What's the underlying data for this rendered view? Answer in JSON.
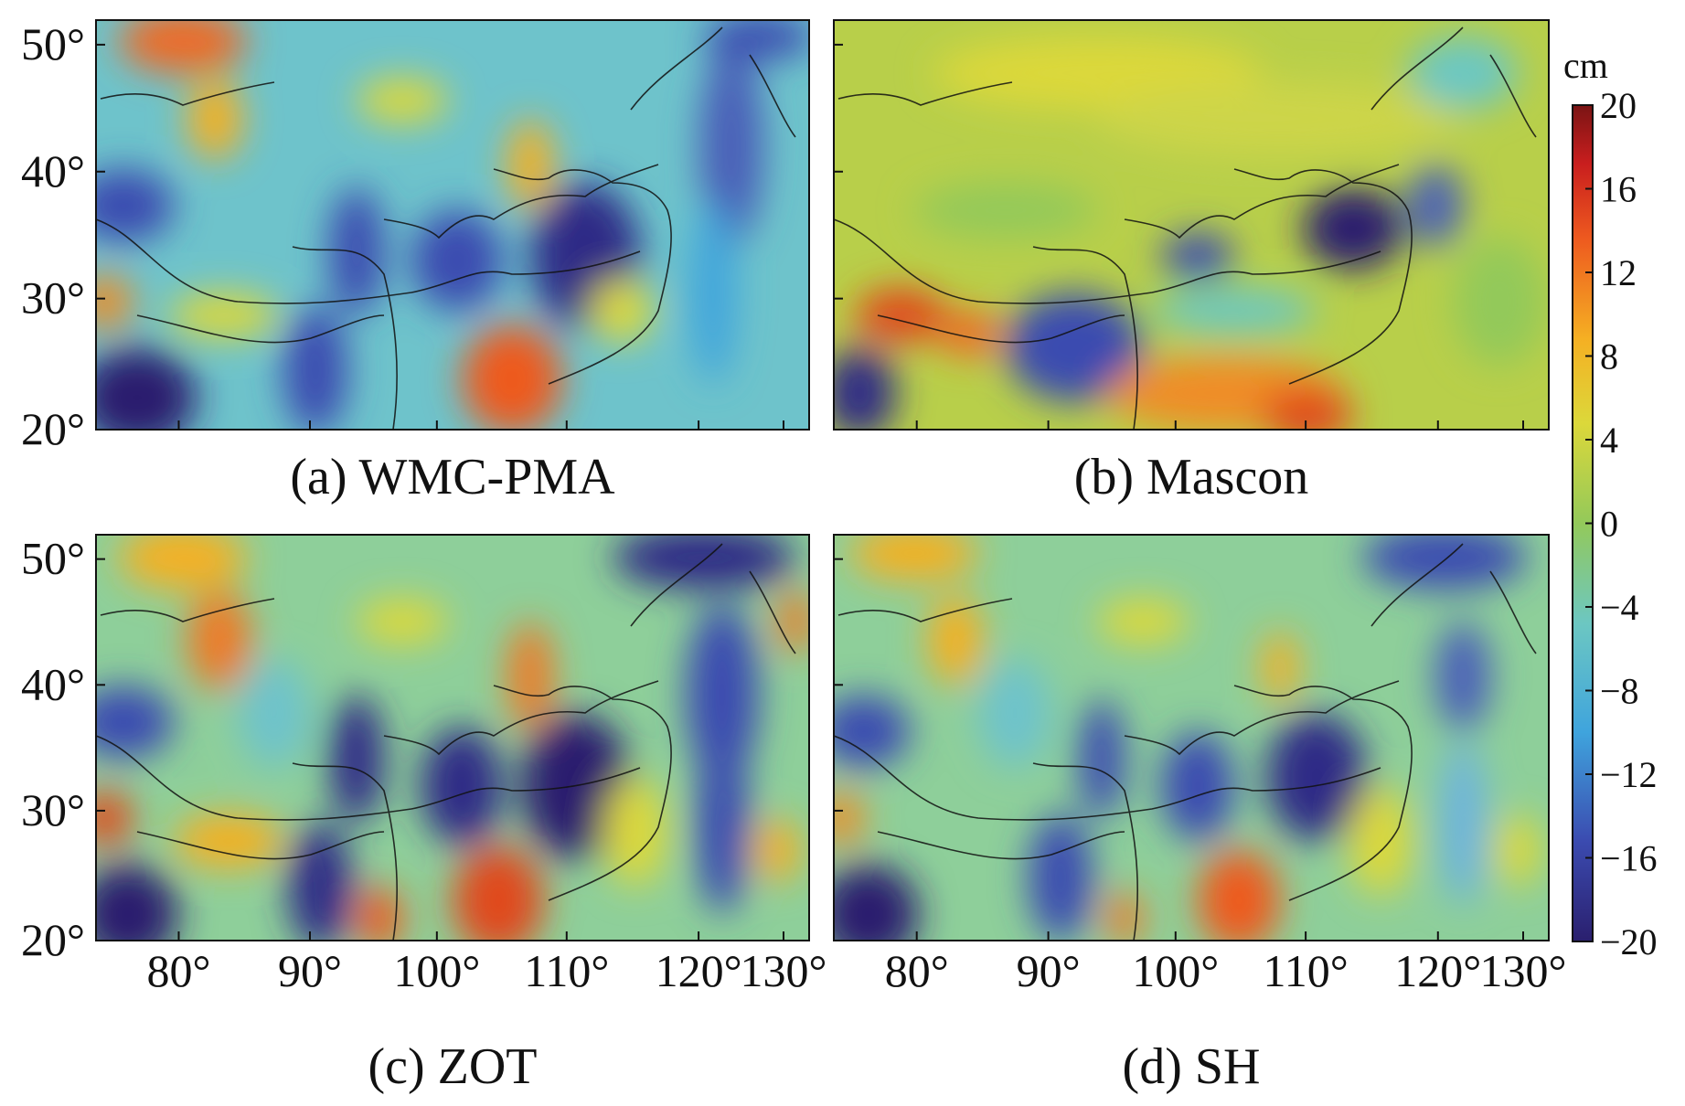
{
  "figure": {
    "unit": "cm",
    "colorbar": {
      "min": -20,
      "max": 20,
      "ticks": [
        "20",
        "16",
        "12",
        "8",
        "4",
        "0",
        "−4",
        "−8",
        "−12",
        "−16",
        "−20"
      ],
      "colormap": [
        "#2a1f6e",
        "#3b4bb0",
        "#3fa4dd",
        "#6cc7c2",
        "#93c95a",
        "#dcd83a",
        "#f5b023",
        "#ee5a1f",
        "#c91e1e",
        "#7a1414"
      ]
    },
    "longitude_ticks": [
      "80°",
      "90°",
      "100°",
      "110°",
      "120°",
      "130°"
    ],
    "latitude_ticks": [
      "50°",
      "40°",
      "30°",
      "20°"
    ],
    "panels": [
      {
        "id": "a",
        "caption": "(a) WMC-PMA"
      },
      {
        "id": "b",
        "caption": "(b) Mascon"
      },
      {
        "id": "c",
        "caption": "(c) ZOT"
      },
      {
        "id": "d",
        "caption": "(d) SH"
      }
    ]
  }
}
